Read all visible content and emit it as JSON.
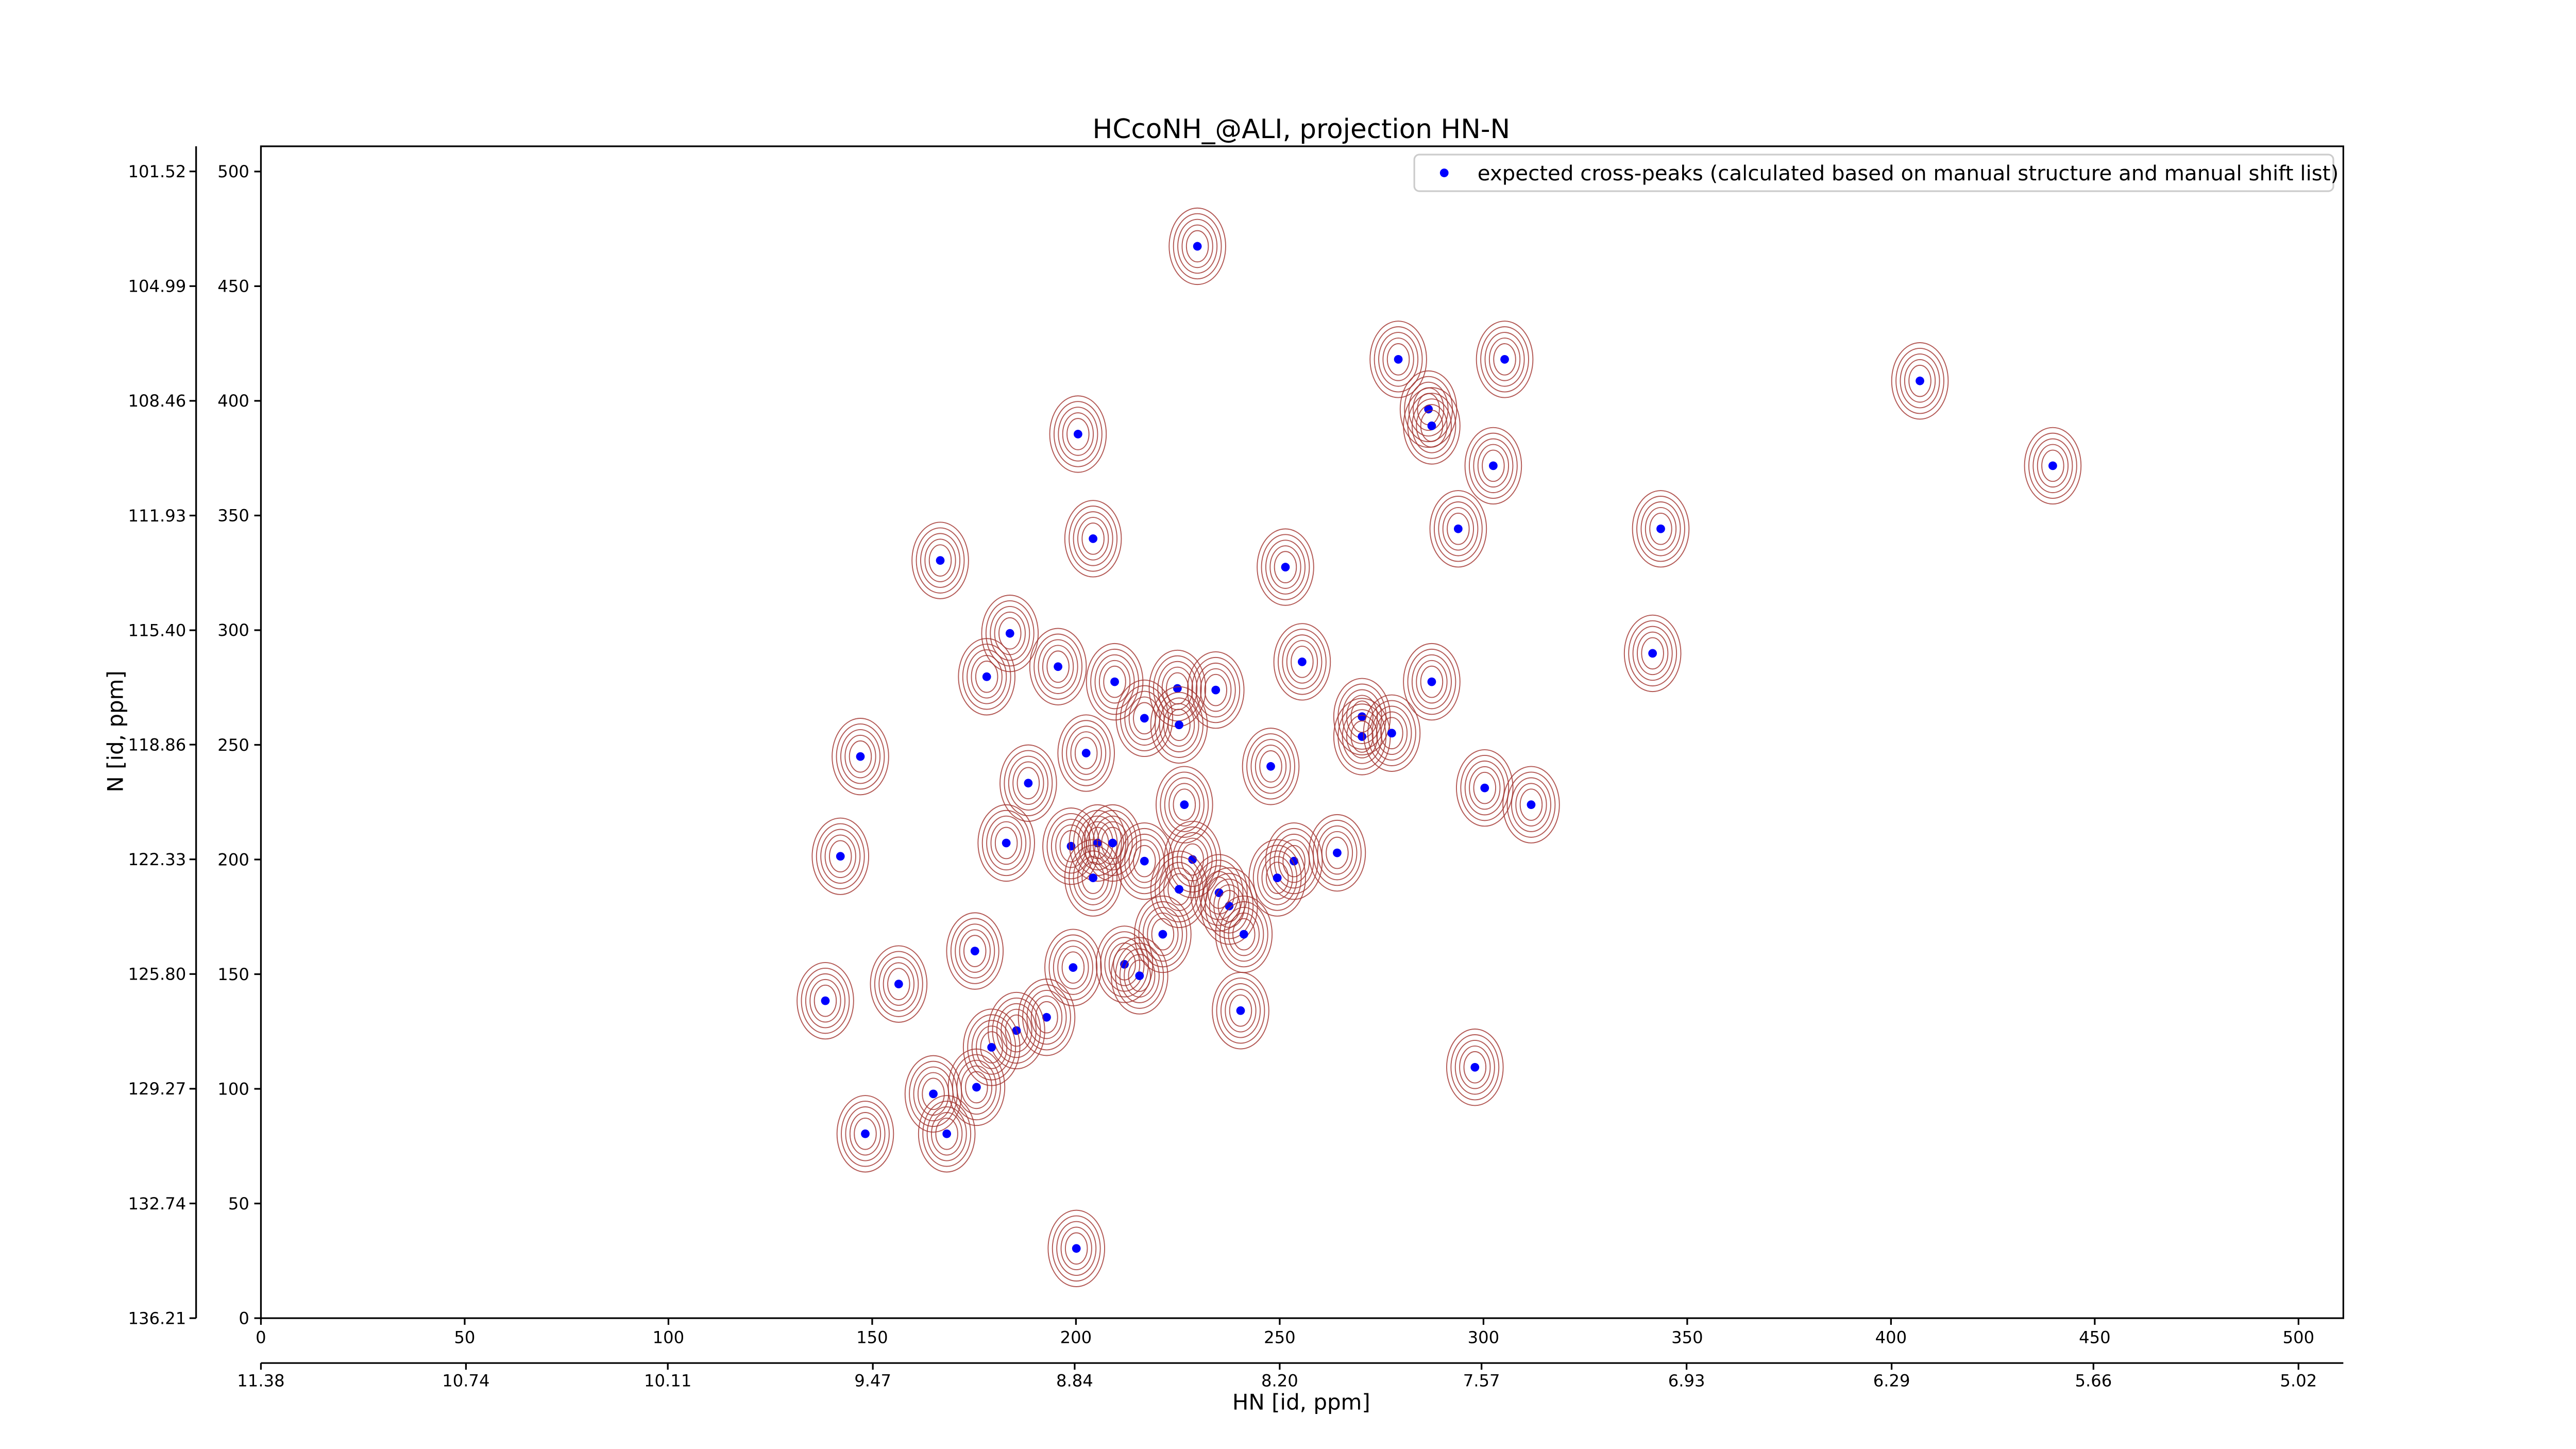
{
  "chart_data": {
    "type": "scatter",
    "title": "HCcoNH_@ALI, projection HN-N",
    "xlabel": "HN [id, ppm]",
    "ylabel": "N [id, ppm]",
    "xlim": [
      0,
      511
    ],
    "ylim": [
      0,
      511
    ],
    "xticks": [
      0,
      50,
      100,
      150,
      200,
      250,
      300,
      350,
      400,
      450,
      500
    ],
    "yticks": [
      0,
      50,
      100,
      150,
      200,
      250,
      300,
      350,
      400,
      450,
      500
    ],
    "x2lim": [
      11.38,
      4.88
    ],
    "x2ticks": [
      11.38,
      10.74,
      10.11,
      9.47,
      8.84,
      {
        "value": 8.2,
        "label": "8.20"
      },
      7.57,
      6.93,
      6.29,
      5.66,
      5.02
    ],
    "y2lim": [
      136.21,
      100.76
    ],
    "y2ticks": [
      136.21,
      132.74,
      129.27,
      {
        "value": 125.8,
        "label": "125.80"
      },
      122.33,
      118.86,
      {
        "value": 115.4,
        "label": "115.40"
      },
      111.93,
      108.46,
      104.99,
      101.52
    ],
    "legend": "upper right",
    "series": [
      {
        "name": "expected cross-peaks (calculated based on manual structure and manual shift list)",
        "color": "#0000ff",
        "x": [
          229.8,
          279.1,
          305.2,
          407.1,
          200.5,
          286.5,
          287.3,
          302.4,
          439.7,
          293.8,
          343.5,
          204.2,
          166.7,
          251.4,
          183.8,
          255.5,
          341.5,
          195.6,
          178.1,
          209.5,
          224.9,
          234.3,
          287.3,
          216.8,
          225.3,
          270.2,
          270.2,
          277.5,
          147.1,
          202.5,
          247.8,
          188.3,
          300.3,
          226.6,
          311.7,
          182.9,
          198.8,
          205.3,
          209.0,
          142.2,
          216.8,
          228.6,
          264.1,
          253.5,
          204.2,
          249.4,
          225.3,
          235.1,
          237.6,
          221.3,
          241.2,
          175.2,
          199.3,
          211.9,
          215.6,
          156.5,
          138.5,
          192.8,
          185.4,
          179.3,
          240.4,
          297.9,
          175.6,
          165.0,
          148.3,
          168.3,
          200.1
        ],
        "values": [
          467.4,
          418.1,
          418.1,
          408.7,
          385.5,
          396.4,
          389.1,
          371.7,
          371.7,
          344.2,
          344.2,
          339.9,
          330.4,
          327.5,
          298.6,
          286.2,
          289.9,
          284.1,
          279.7,
          277.5,
          274.6,
          273.9,
          277.5,
          261.6,
          258.7,
          262.3,
          253.6,
          255.1,
          244.9,
          246.4,
          240.6,
          233.3,
          231.2,
          223.9,
          223.9,
          207.2,
          205.8,
          207.2,
          207.2,
          201.4,
          199.3,
          200.0,
          202.9,
          199.3,
          192.0,
          192.0,
          187.0,
          185.5,
          179.7,
          167.4,
          167.4,
          160.1,
          152.9,
          154.3,
          149.3,
          145.7,
          138.4,
          131.2,
          125.4,
          118.1,
          134.1,
          109.4,
          100.7,
          97.8,
          80.4,
          80.4,
          30.4
        ]
      }
    ]
  }
}
